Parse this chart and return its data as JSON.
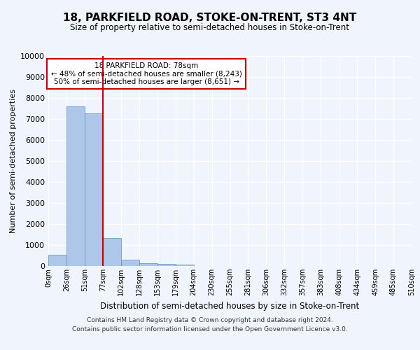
{
  "title": "18, PARKFIELD ROAD, STOKE-ON-TRENT, ST3 4NT",
  "subtitle": "Size of property relative to semi-detached houses in Stoke-on-Trent",
  "xlabel": "Distribution of semi-detached houses by size in Stoke-on-Trent",
  "ylabel": "Number of semi-detached properties",
  "bin_edges": [
    "0sqm",
    "26sqm",
    "51sqm",
    "77sqm",
    "102sqm",
    "128sqm",
    "153sqm",
    "179sqm",
    "204sqm",
    "230sqm",
    "255sqm",
    "281sqm",
    "306sqm",
    "332sqm",
    "357sqm",
    "383sqm",
    "408sqm",
    "434sqm",
    "459sqm",
    "485sqm",
    "510sqm"
  ],
  "bar_heights": [
    550,
    7600,
    7250,
    1350,
    300,
    150,
    100,
    80,
    0,
    0,
    0,
    0,
    0,
    0,
    0,
    0,
    0,
    0,
    0,
    0
  ],
  "bar_color": "#aec6e8",
  "bar_edge_color": "#5a8fc0",
  "annotation_title": "18 PARKFIELD ROAD: 78sqm",
  "annotation_line1": "← 48% of semi-detached houses are smaller (8,243)",
  "annotation_line2": "50% of semi-detached houses are larger (8,651) →",
  "annotation_box_color": "#ffffff",
  "annotation_box_edge": "#cc0000",
  "red_line_color": "#cc0000",
  "red_line_bin": 2.5,
  "ylim": [
    0,
    10000
  ],
  "yticks": [
    0,
    1000,
    2000,
    3000,
    4000,
    5000,
    6000,
    7000,
    8000,
    9000,
    10000
  ],
  "footer_line1": "Contains HM Land Registry data © Crown copyright and database right 2024.",
  "footer_line2": "Contains public sector information licensed under the Open Government Licence v3.0.",
  "background_color": "#f0f4fc",
  "grid_color": "#ffffff"
}
